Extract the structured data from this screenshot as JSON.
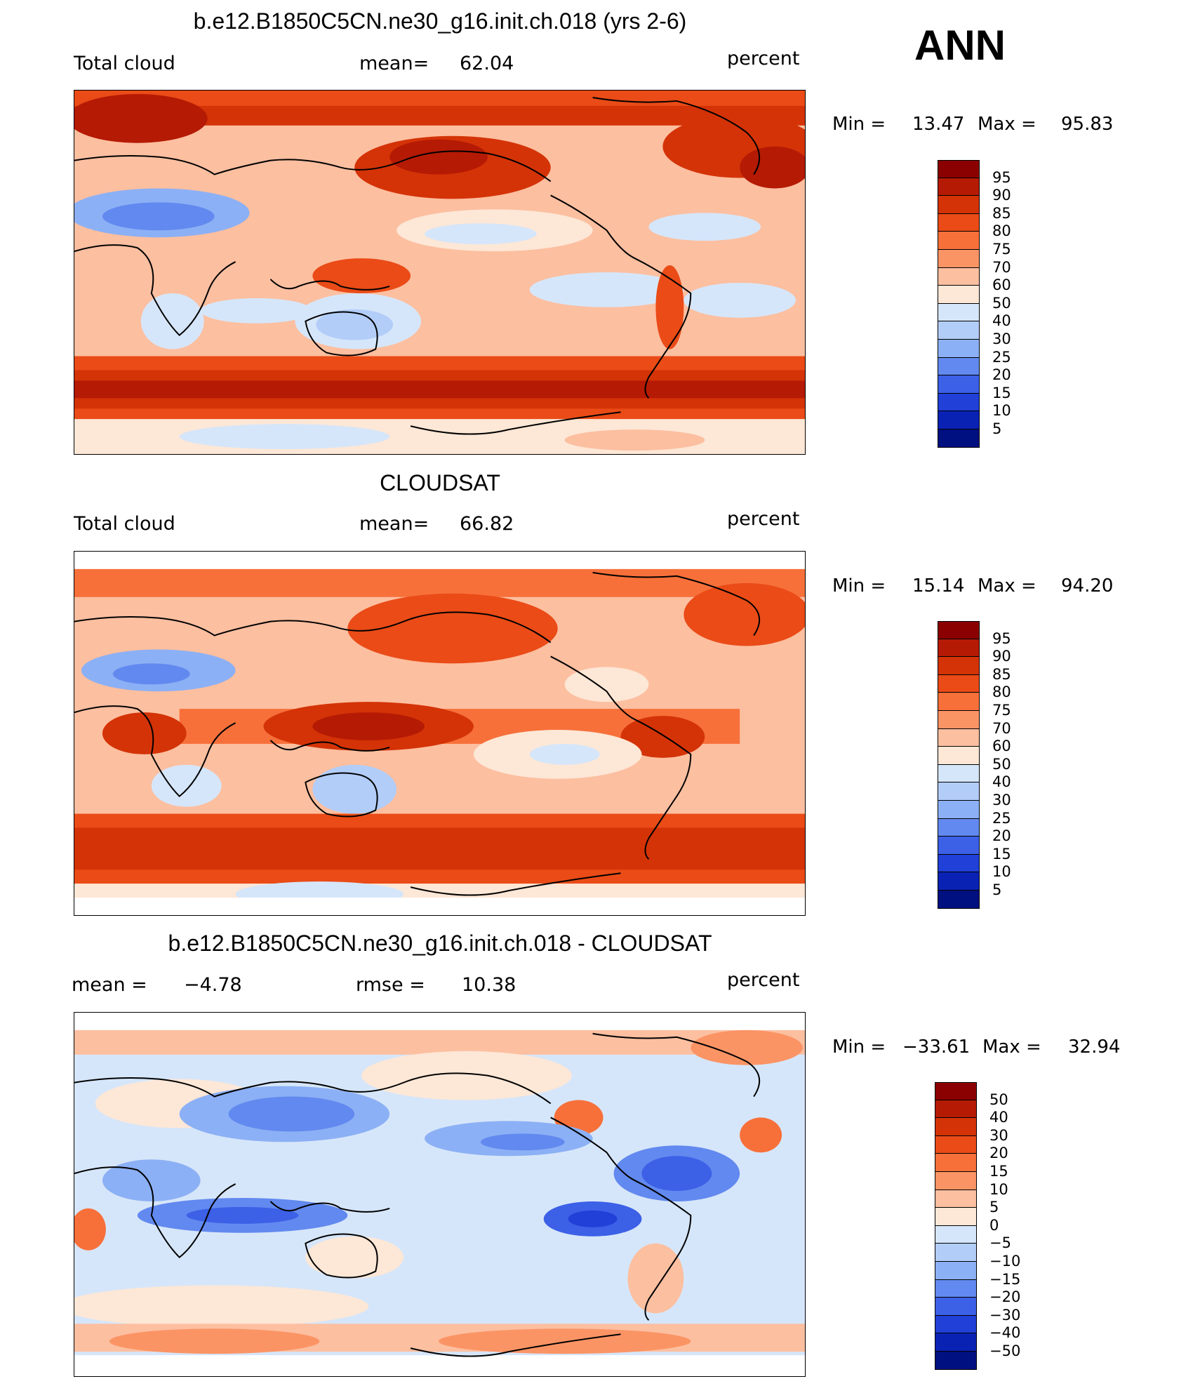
{
  "season": "ANN",
  "panels": [
    {
      "id": "model",
      "title": "b.e12.B1850C5CN.ne30_g16.init.ch.018 (yrs 2-6)",
      "left_label": "Total cloud",
      "center_label": "mean=",
      "center_value": "62.04",
      "units": "percent",
      "min_label": "Min =",
      "min_value": "13.47",
      "max_label": "Max =",
      "max_value": "95.83",
      "colorbar_levels": [
        "95",
        "90",
        "85",
        "80",
        "75",
        "70",
        "60",
        "50",
        "40",
        "30",
        "25",
        "20",
        "15",
        "10",
        "5"
      ]
    },
    {
      "id": "obs",
      "title": "CLOUDSAT",
      "left_label": "Total cloud",
      "center_label": "mean=",
      "center_value": "66.82",
      "units": "percent",
      "min_label": "Min =",
      "min_value": "15.14",
      "max_label": "Max =",
      "max_value": "94.20",
      "colorbar_levels": [
        "95",
        "90",
        "85",
        "80",
        "75",
        "70",
        "60",
        "50",
        "40",
        "30",
        "25",
        "20",
        "15",
        "10",
        "5"
      ]
    },
    {
      "id": "diff",
      "title": "b.e12.B1850C5CN.ne30_g16.init.ch.018 - CLOUDSAT",
      "left_label": "mean =",
      "left_value": "−4.78",
      "center_label": "rmse =",
      "center_value": "10.38",
      "units": "percent",
      "min_label": "Min =",
      "min_value": "−33.61",
      "max_label": "Max =",
      "max_value": "32.94",
      "colorbar_levels": [
        "50",
        "40",
        "30",
        "20",
        "15",
        "10",
        "5",
        "0",
        "−5",
        "−10",
        "−15",
        "−20",
        "−30",
        "−40",
        "−50"
      ]
    }
  ],
  "colors": {
    "colorbar_top_to_bottom": [
      "#8b0000",
      "#b51a04",
      "#d43307",
      "#ea4b17",
      "#f7703a",
      "#fb9465",
      "#fcbfa0",
      "#fde7d6",
      "#d6e6fa",
      "#b2cdf8",
      "#8cb0f5",
      "#6289ef",
      "#3c60e6",
      "#2040d8",
      "#0a22b4",
      "#001080"
    ]
  }
}
